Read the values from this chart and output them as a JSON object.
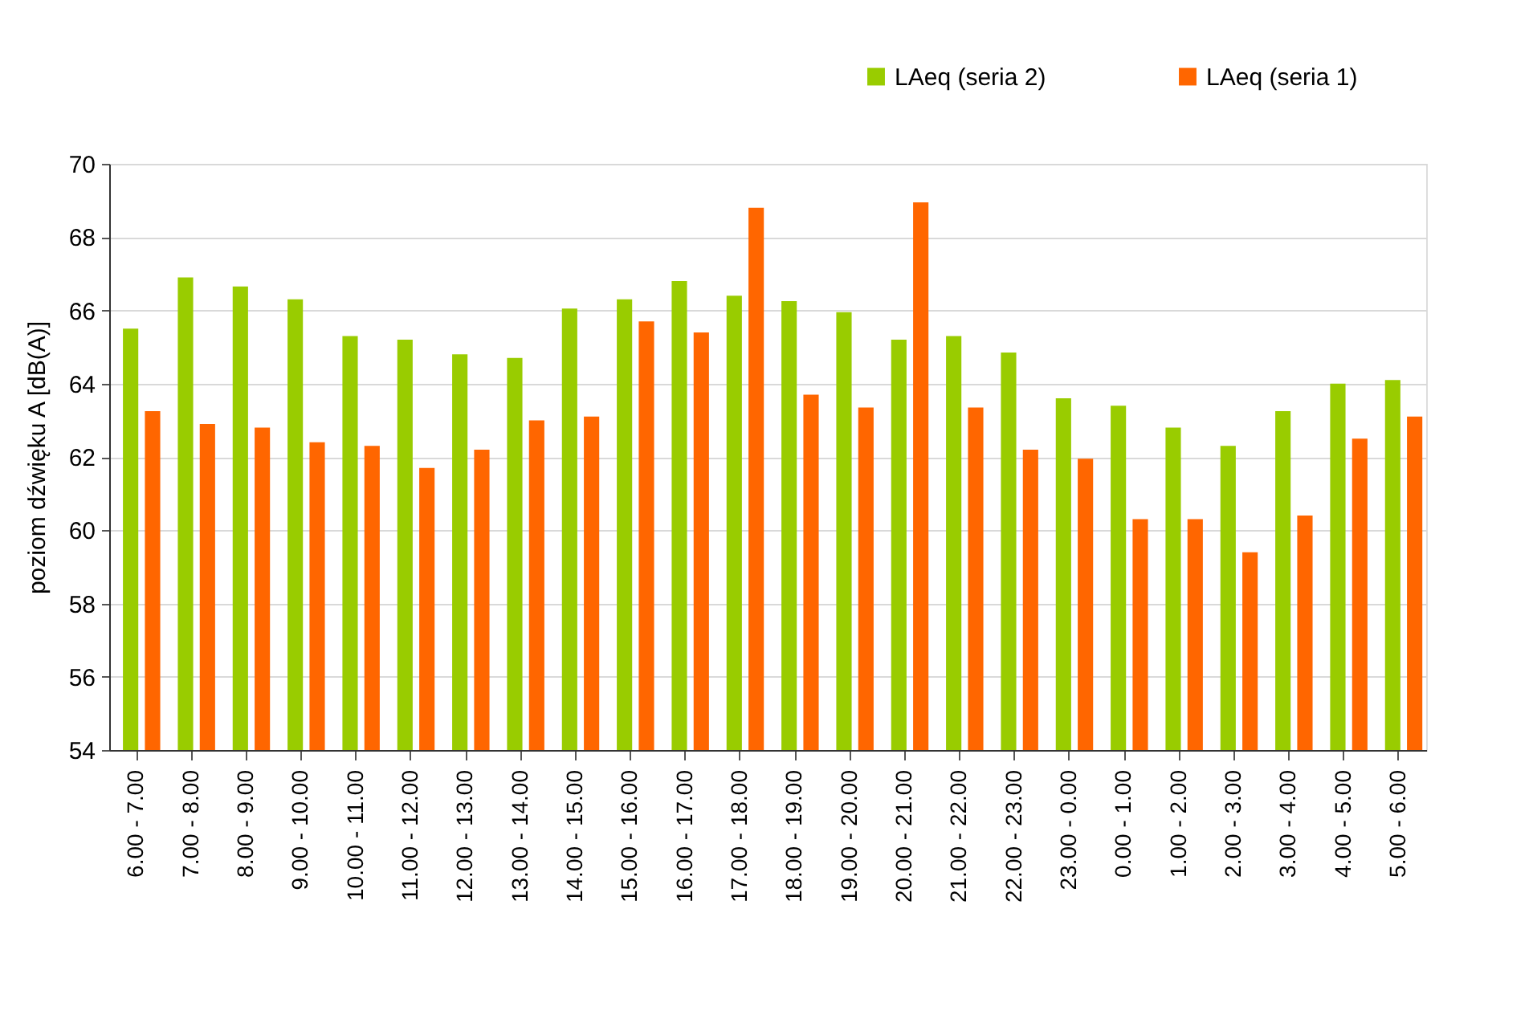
{
  "chart_data": {
    "type": "bar",
    "ylabel": "poziom dźwięku A [dB(A)]",
    "categories": [
      "6.00 - 7.00",
      "7.00 - 8.00",
      "8.00 - 9.00",
      "9.00 - 10.00",
      "10.00 - 11.00",
      "11.00 - 12.00",
      "12.00 - 13.00",
      "13.00 - 14.00",
      "14.00 - 15.00",
      "15.00 - 16.00",
      "16.00 - 17.00",
      "17.00 - 18.00",
      "18.00 - 19.00",
      "19.00 - 20.00",
      "20.00 - 21.00",
      "21.00 - 22.00",
      "22.00 - 23.00",
      "23.00 - 0.00",
      "0.00 - 1.00",
      "1.00 - 2.00",
      "2.00 - 3.00",
      "3.00 - 4.00",
      "4.00 - 5.00",
      "5.00 - 6.00"
    ],
    "series": [
      {
        "name": "LAeq (seria 2)",
        "color": "#99cc00",
        "values": [
          65.5,
          66.9,
          66.65,
          66.3,
          65.3,
          65.2,
          64.8,
          64.7,
          66.05,
          66.3,
          66.8,
          66.4,
          66.25,
          65.95,
          65.2,
          65.3,
          64.85,
          63.6,
          63.4,
          62.8,
          62.3,
          63.25,
          64.0,
          64.1
        ]
      },
      {
        "name": "LAeq (seria 1)",
        "color": "#ff6600",
        "values": [
          63.25,
          62.9,
          62.8,
          62.4,
          62.3,
          61.7,
          62.2,
          63.0,
          63.1,
          65.7,
          65.4,
          68.8,
          63.7,
          63.35,
          68.95,
          63.35,
          62.2,
          61.95,
          60.3,
          60.3,
          59.4,
          60.4,
          62.5,
          63.1
        ]
      }
    ],
    "ylim": [
      54,
      70
    ],
    "yticks": [
      54,
      56,
      58,
      60,
      62,
      64,
      66,
      68,
      70
    ],
    "grid": "y",
    "legend": "top right"
  }
}
